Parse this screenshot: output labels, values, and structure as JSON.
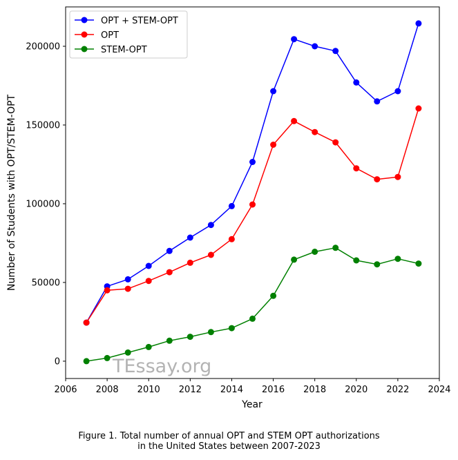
{
  "chart_data": {
    "type": "line",
    "title": "",
    "xlabel": "Year",
    "ylabel": "Number of Students with OPT/STEM-OPT",
    "x": [
      2007,
      2008,
      2009,
      2010,
      2011,
      2012,
      2013,
      2014,
      2015,
      2016,
      2017,
      2018,
      2019,
      2020,
      2021,
      2022,
      2023
    ],
    "series": [
      {
        "name": "OPT + STEM-OPT",
        "color": "#0000ff",
        "values": [
          24500,
          47500,
          52000,
          60500,
          70000,
          78500,
          86500,
          98500,
          126500,
          171500,
          204500,
          200000,
          197000,
          177000,
          165000,
          171500,
          214500
        ]
      },
      {
        "name": "OPT",
        "color": "#ff0000",
        "values": [
          24500,
          45000,
          46000,
          51000,
          56500,
          62500,
          67500,
          77500,
          99500,
          137500,
          152500,
          145500,
          139000,
          122500,
          115500,
          117000,
          160500
        ]
      },
      {
        "name": "STEM-OPT",
        "color": "#008000",
        "values": [
          0,
          2000,
          5500,
          9000,
          13000,
          15500,
          18500,
          21000,
          27000,
          41500,
          64500,
          69500,
          72000,
          64000,
          61500,
          65000,
          62000
        ]
      }
    ],
    "xlim": [
      2006,
      2024
    ],
    "ylim": [
      -11000,
      225000
    ],
    "x_ticks": [
      "2006",
      "2008",
      "2010",
      "2012",
      "2014",
      "2016",
      "2018",
      "2020",
      "2022",
      "2024"
    ],
    "y_ticks": [
      "0",
      "50000",
      "100000",
      "150000",
      "200000"
    ],
    "grid": false,
    "legend_position": "top-left",
    "watermark": "TEssay.org",
    "watermark_color": "#b3b3b3"
  },
  "caption": {
    "line1": "Figure 1. Total number of annual OPT and STEM OPT authorizations",
    "line2": "in the United States between 2007-2023"
  }
}
